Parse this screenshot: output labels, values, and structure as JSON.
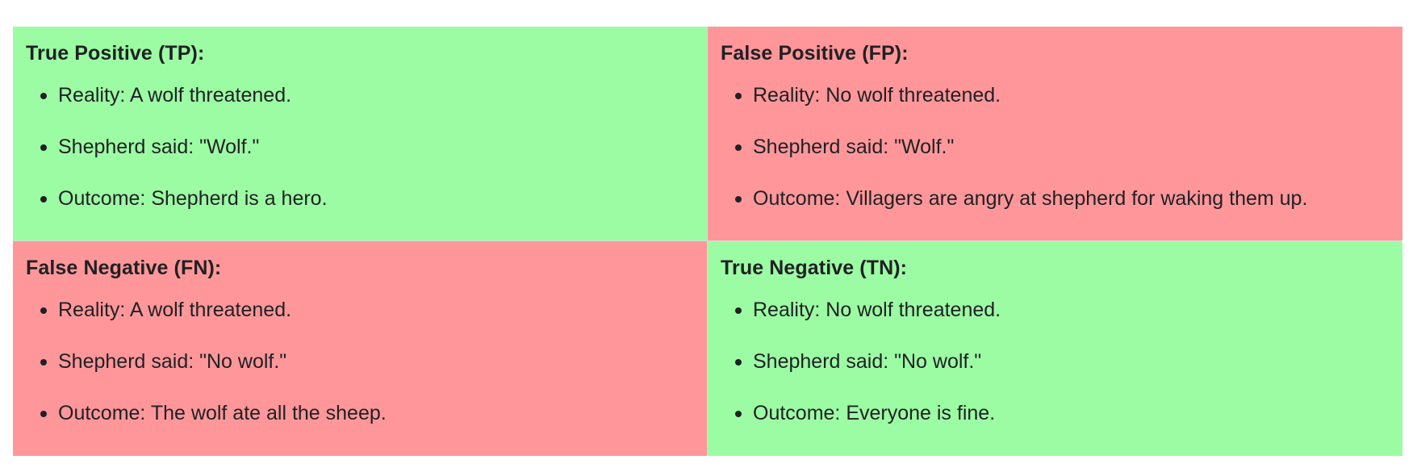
{
  "cells": [
    {
      "title": "True Positive (TP):",
      "items": [
        "Reality: A wolf threatened.",
        "Shepherd said: \"Wolf.\"",
        "Outcome: Shepherd is a hero."
      ],
      "background": "#9cfca4"
    },
    {
      "title": "False Positive (FP):",
      "items": [
        "Reality: No wolf threatened.",
        "Shepherd said: \"Wolf.\"",
        "Outcome: Villagers are angry at shepherd for waking them up."
      ],
      "background": "#ff979a"
    },
    {
      "title": "False Negative (FN):",
      "items": [
        "Reality: A wolf threatened.",
        "Shepherd said: \"No wolf.\"",
        "Outcome: The wolf ate all the sheep."
      ],
      "background": "#ff979a"
    },
    {
      "title": "True Negative (TN):",
      "items": [
        "Reality: No wolf threatened.",
        "Shepherd said: \"No wolf.\"",
        "Outcome: Everyone is fine."
      ],
      "background": "#9cfca4"
    }
  ]
}
